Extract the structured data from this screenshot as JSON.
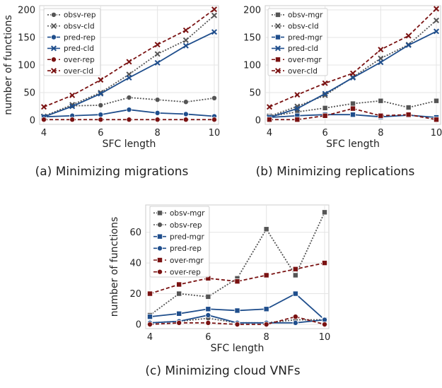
{
  "chart_data": [
    {
      "type": "line",
      "caption": "(a) Minimizing migrations",
      "xlabel": "SFC length",
      "ylabel": "number of functions",
      "xlim": [
        4,
        10
      ],
      "ylim": [
        0,
        200
      ],
      "xticks": [
        4,
        6,
        8,
        10
      ],
      "yticks": [
        0,
        50,
        100,
        150,
        200
      ],
      "grid": true,
      "legend_position": "top-left",
      "x": [
        4,
        5,
        6,
        7,
        8,
        9,
        10
      ],
      "series": [
        {
          "name": "obsv-rep",
          "color": "#555555",
          "dash": "dotted",
          "marker": "circle",
          "values": [
            7,
            26,
            27,
            41,
            37,
            33,
            40
          ]
        },
        {
          "name": "obsv-cld",
          "color": "#555555",
          "dash": "dotted",
          "marker": "x",
          "values": [
            7,
            28,
            50,
            83,
            120,
            145,
            190
          ]
        },
        {
          "name": "pred-rep",
          "color": "#1f4e8c",
          "dash": "solid",
          "marker": "circle",
          "values": [
            6,
            8,
            10,
            19,
            13,
            11,
            7
          ]
        },
        {
          "name": "pred-cld",
          "color": "#1f4e8c",
          "dash": "solid",
          "marker": "x",
          "values": [
            6,
            25,
            48,
            77,
            104,
            135,
            160
          ]
        },
        {
          "name": "over-rep",
          "color": "#7a1212",
          "dash": "dashed",
          "marker": "circle",
          "values": [
            1,
            1,
            1,
            1,
            1,
            1,
            1
          ]
        },
        {
          "name": "over-cld",
          "color": "#7a1212",
          "dash": "dashed",
          "marker": "x",
          "values": [
            24,
            45,
            73,
            106,
            137,
            163,
            201
          ]
        }
      ]
    },
    {
      "type": "line",
      "caption": "(b) Minimizing replications",
      "xlabel": "SFC length",
      "ylabel": "",
      "xlim": [
        4,
        10
      ],
      "ylim": [
        0,
        200
      ],
      "xticks": [
        4,
        6,
        8,
        10
      ],
      "yticks": [
        0,
        50,
        100,
        150,
        200
      ],
      "grid": true,
      "legend_position": "top-left",
      "x": [
        4,
        5,
        6,
        7,
        8,
        9,
        10
      ],
      "series": [
        {
          "name": "obsv-mgr",
          "color": "#555555",
          "dash": "dotted",
          "marker": "square",
          "values": [
            7,
            15,
            22,
            30,
            35,
            23,
            35
          ]
        },
        {
          "name": "obsv-cld",
          "color": "#555555",
          "dash": "dotted",
          "marker": "x",
          "values": [
            7,
            25,
            45,
            78,
            112,
            137,
            181
          ]
        },
        {
          "name": "pred-mgr",
          "color": "#1f4e8c",
          "dash": "solid",
          "marker": "square",
          "values": [
            5,
            8,
            10,
            10,
            6,
            9,
            5
          ]
        },
        {
          "name": "pred-cld",
          "color": "#1f4e8c",
          "dash": "solid",
          "marker": "x",
          "values": [
            5,
            21,
            48,
            77,
            105,
            136,
            161
          ]
        },
        {
          "name": "over-mgr",
          "color": "#7a1212",
          "dash": "dashed",
          "marker": "square",
          "values": [
            1,
            1,
            8,
            21,
            8,
            10,
            1
          ]
        },
        {
          "name": "over-cld",
          "color": "#7a1212",
          "dash": "dashed",
          "marker": "x",
          "values": [
            24,
            46,
            67,
            85,
            128,
            153,
            202
          ]
        }
      ]
    },
    {
      "type": "line",
      "caption": "(c) Minimizing cloud VNFs",
      "xlabel": "SFC length",
      "ylabel": "number of functions",
      "xlim": [
        4,
        10
      ],
      "ylim": [
        0,
        75
      ],
      "xticks": [
        4,
        6,
        8,
        10
      ],
      "yticks": [
        0,
        20,
        40,
        60
      ],
      "grid": true,
      "legend_position": "top-left",
      "x": [
        4,
        5,
        6,
        7,
        8,
        9,
        10
      ],
      "series": [
        {
          "name": "obsv-mgr",
          "color": "#555555",
          "dash": "dotted",
          "marker": "square",
          "values": [
            6,
            20,
            18,
            30,
            62,
            32,
            73
          ]
        },
        {
          "name": "obsv-rep",
          "color": "#555555",
          "dash": "dotted",
          "marker": "circle",
          "values": [
            1,
            2,
            4,
            1,
            1,
            3,
            3
          ]
        },
        {
          "name": "pred-mgr",
          "color": "#1f4e8c",
          "dash": "solid",
          "marker": "square",
          "values": [
            5,
            7,
            10,
            9,
            10,
            20,
            3
          ]
        },
        {
          "name": "pred-rep",
          "color": "#1f4e8c",
          "dash": "solid",
          "marker": "circle",
          "values": [
            1,
            2,
            6,
            1,
            1,
            1,
            3
          ]
        },
        {
          "name": "over-mgr",
          "color": "#7a1212",
          "dash": "dashed",
          "marker": "square",
          "values": [
            20,
            26,
            30,
            28,
            32,
            36,
            40
          ]
        },
        {
          "name": "over-rep",
          "color": "#7a1212",
          "dash": "dashed",
          "marker": "circle",
          "values": [
            0,
            1,
            1,
            0,
            0,
            5,
            0
          ]
        }
      ]
    }
  ]
}
